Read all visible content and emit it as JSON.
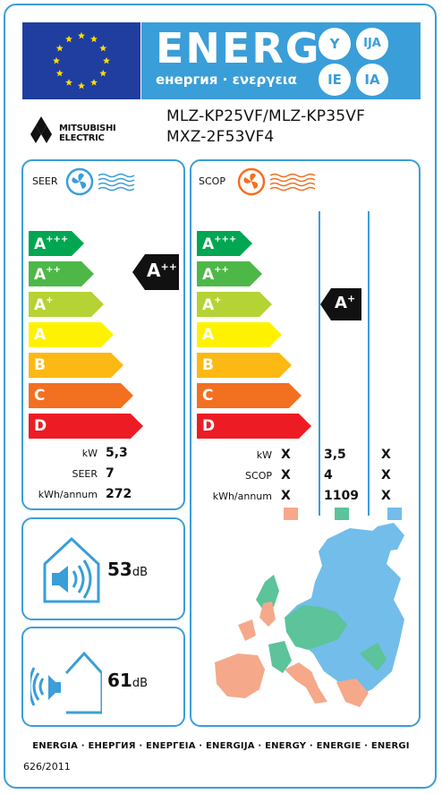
{
  "header": {
    "title": "ENERG",
    "subtitle": "енергия · ενεργεια",
    "lang_codes": [
      "Y",
      "IJA",
      "IE",
      "IA"
    ]
  },
  "brand": {
    "name_line1": "MITSUBISHI",
    "name_line2": "ELECTRIC"
  },
  "model": {
    "indoor": "MLZ-KP25VF/MLZ-KP35VF",
    "outdoor": "MXZ-2F53VF4"
  },
  "cooling": {
    "label": "SEER",
    "classes": [
      "A",
      "A",
      "A",
      "A",
      "B",
      "C",
      "D"
    ],
    "class_sups": [
      "+++",
      "++",
      "+",
      "",
      "",
      "",
      ""
    ],
    "class_colors": [
      "#00a651",
      "#4db848",
      "#b5d334",
      "#fff200",
      "#fdb913",
      "#f37021",
      "#ed1c24"
    ],
    "rating": "A",
    "rating_sup": "++",
    "rows": [
      {
        "label": "kW",
        "value": "5,3"
      },
      {
        "label": "SEER",
        "value": "7"
      },
      {
        "label": "kWh/annum",
        "value": "272"
      }
    ]
  },
  "heating": {
    "label": "SCOP",
    "classes": [
      "A",
      "A",
      "A",
      "A",
      "B",
      "C",
      "D"
    ],
    "class_sups": [
      "+++",
      "++",
      "+",
      "",
      "",
      "",
      ""
    ],
    "rating": "A",
    "rating_sup": "+",
    "rows": [
      {
        "label": "kW",
        "values": [
          "X",
          "3,5",
          "X"
        ]
      },
      {
        "label": "SCOP",
        "values": [
          "X",
          "4",
          "X"
        ]
      },
      {
        "label": "kWh/annum",
        "values": [
          "X",
          "1109",
          "X"
        ]
      }
    ],
    "zone_colors": [
      "#f5a98a",
      "#5cc39a",
      "#72bdea"
    ]
  },
  "noise": {
    "indoor_value": "53",
    "outdoor_value": "61",
    "unit": "dB"
  },
  "footer": {
    "languages": "ENERGIA · ЕНЕРГИЯ · ΕΝΕΡΓΕΙΑ · ENERGIJA · ENERGY · ENERGIE · ENERGI",
    "regulation": "626/2011"
  }
}
